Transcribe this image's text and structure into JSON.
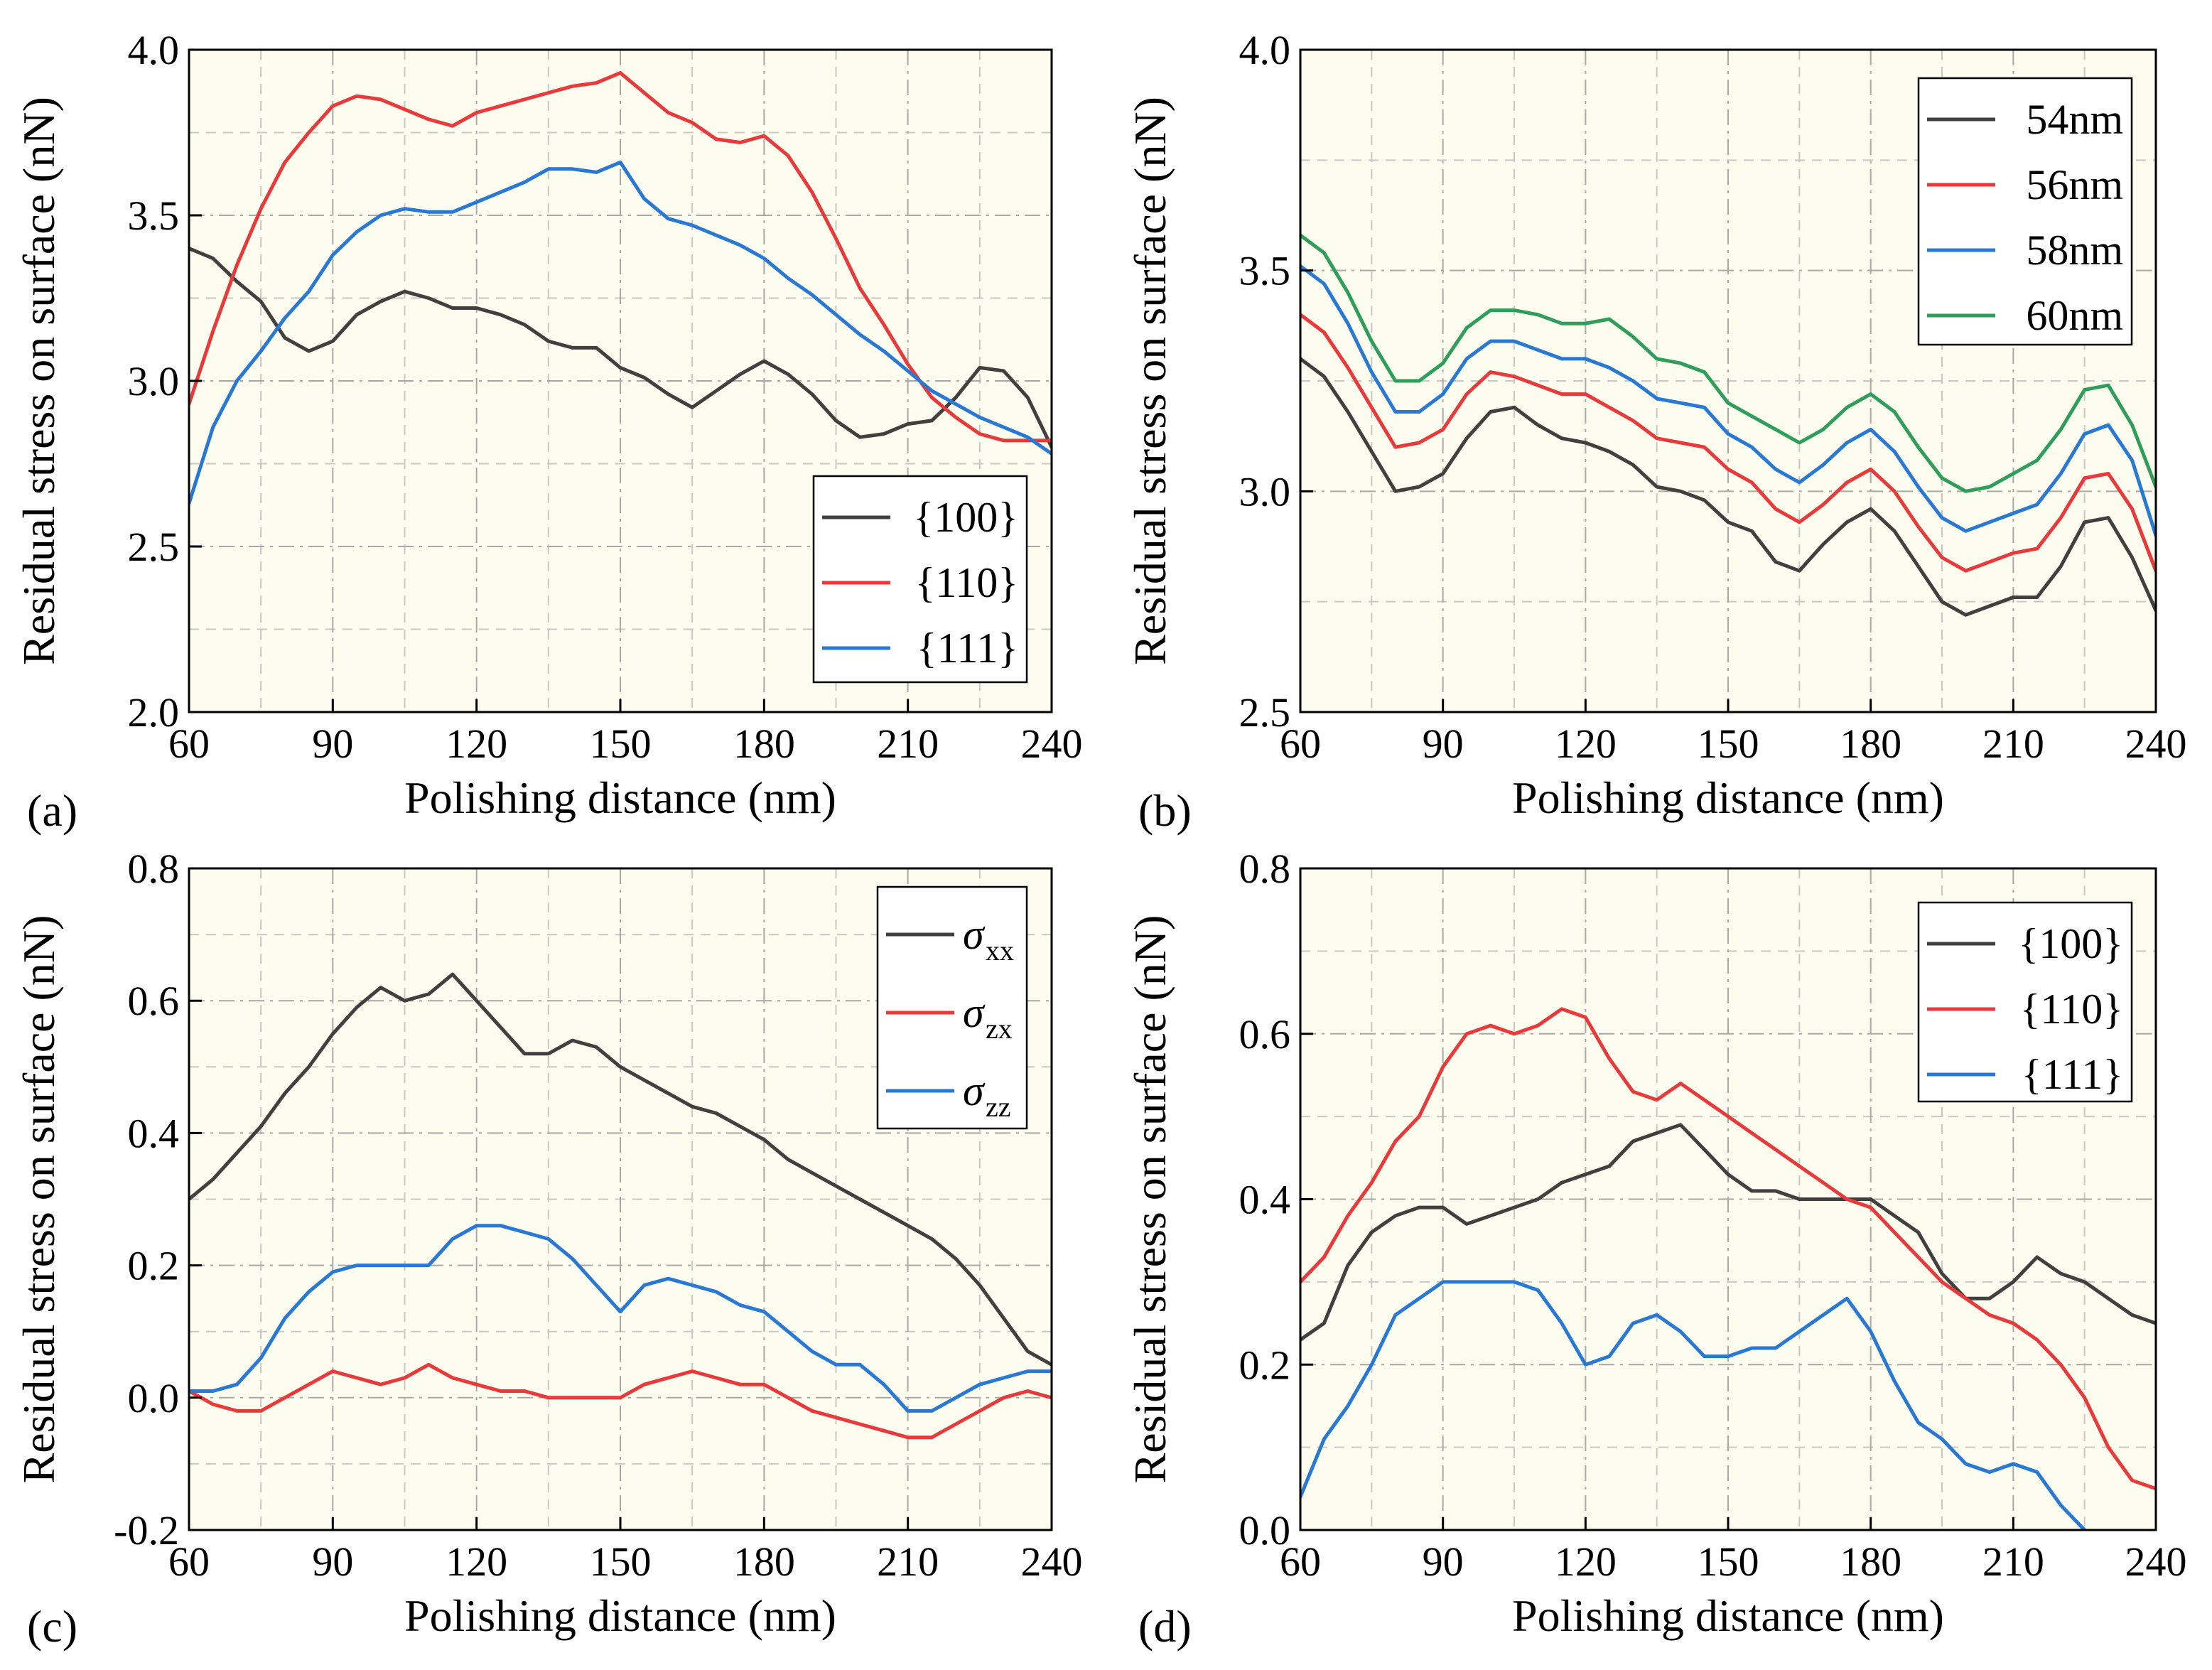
{
  "chart_data": [
    {
      "type": "line",
      "panel_label": "(a)",
      "xlabel": "Polishing distance (nm)",
      "ylabel": "Residual stress on surface (nN)",
      "xlim": [
        60,
        240
      ],
      "ylim": [
        2.0,
        4.0
      ],
      "xticks": [
        60,
        90,
        120,
        150,
        180,
        210,
        240
      ],
      "xtick_labels": [
        "60",
        "90",
        "120",
        "150",
        "180",
        "210",
        "240"
      ],
      "yticks": [
        2.0,
        2.5,
        3.0,
        3.5,
        4.0
      ],
      "ytick_labels": [
        "2.0",
        "2.5",
        "3.0",
        "3.5",
        "4.0"
      ],
      "grid": true,
      "legend_position": "bottom-right",
      "x": [
        60,
        65,
        70,
        75,
        80,
        85,
        90,
        95,
        100,
        105,
        110,
        115,
        120,
        125,
        130,
        135,
        140,
        145,
        150,
        155,
        160,
        165,
        170,
        175,
        180,
        185,
        190,
        195,
        200,
        205,
        210,
        215,
        220,
        225,
        230,
        235,
        240
      ],
      "series": [
        {
          "name": "{100}",
          "label_main": "{100}",
          "label_sub": "",
          "color": "#404040",
          "values": [
            3.4,
            3.37,
            3.3,
            3.24,
            3.13,
            3.09,
            3.12,
            3.2,
            3.24,
            3.27,
            3.25,
            3.22,
            3.22,
            3.2,
            3.17,
            3.12,
            3.1,
            3.1,
            3.04,
            3.01,
            2.96,
            2.92,
            2.97,
            3.02,
            3.06,
            3.02,
            2.96,
            2.88,
            2.83,
            2.84,
            2.87,
            2.88,
            2.95,
            3.04,
            3.03,
            2.95,
            2.8
          ]
        },
        {
          "name": "{110}",
          "label_main": "{110}",
          "label_sub": "",
          "color": "#e8393b",
          "values": [
            2.93,
            3.15,
            3.35,
            3.52,
            3.66,
            3.75,
            3.83,
            3.86,
            3.85,
            3.82,
            3.79,
            3.77,
            3.81,
            3.83,
            3.85,
            3.87,
            3.89,
            3.9,
            3.93,
            3.87,
            3.81,
            3.78,
            3.73,
            3.72,
            3.74,
            3.68,
            3.57,
            3.43,
            3.28,
            3.17,
            3.05,
            2.95,
            2.89,
            2.84,
            2.82,
            2.82,
            2.82
          ]
        },
        {
          "name": "{111}",
          "label_main": "{111}",
          "label_sub": "",
          "color": "#2878d4",
          "values": [
            2.63,
            2.86,
            3.0,
            3.09,
            3.19,
            3.27,
            3.38,
            3.45,
            3.5,
            3.52,
            3.51,
            3.51,
            3.54,
            3.57,
            3.6,
            3.64,
            3.64,
            3.63,
            3.66,
            3.55,
            3.49,
            3.47,
            3.44,
            3.41,
            3.37,
            3.31,
            3.26,
            3.2,
            3.14,
            3.09,
            3.03,
            2.97,
            2.93,
            2.89,
            2.86,
            2.83,
            2.78
          ]
        }
      ]
    },
    {
      "type": "line",
      "panel_label": "(b)",
      "xlabel": "Polishing distance (nm)",
      "ylabel": "Residual stress on surface (nN)",
      "xlim": [
        60,
        240
      ],
      "ylim": [
        2.5,
        4.0
      ],
      "xticks": [
        60,
        90,
        120,
        150,
        180,
        210,
        240
      ],
      "xtick_labels": [
        "60",
        "90",
        "120",
        "150",
        "180",
        "210",
        "240"
      ],
      "yticks": [
        2.5,
        3.0,
        3.5,
        4.0
      ],
      "ytick_labels": [
        "2.5",
        "3.0",
        "3.5",
        "4.0"
      ],
      "grid": true,
      "legend_position": "top-right",
      "x": [
        60,
        65,
        70,
        75,
        80,
        85,
        90,
        95,
        100,
        105,
        110,
        115,
        120,
        125,
        130,
        135,
        140,
        145,
        150,
        155,
        160,
        165,
        170,
        175,
        180,
        185,
        190,
        195,
        200,
        205,
        210,
        215,
        220,
        225,
        230,
        235,
        240
      ],
      "series": [
        {
          "name": "54nm",
          "label_main": "54nm",
          "label_sub": "",
          "color": "#404040",
          "values": [
            3.3,
            3.26,
            3.18,
            3.09,
            3.0,
            3.01,
            3.04,
            3.12,
            3.18,
            3.19,
            3.15,
            3.12,
            3.11,
            3.09,
            3.06,
            3.01,
            3.0,
            2.98,
            2.93,
            2.91,
            2.84,
            2.82,
            2.88,
            2.93,
            2.96,
            2.91,
            2.83,
            2.75,
            2.72,
            2.74,
            2.76,
            2.76,
            2.83,
            2.93,
            2.94,
            2.85,
            2.73
          ]
        },
        {
          "name": "56nm",
          "label_main": "56nm",
          "label_sub": "",
          "color": "#e8393b",
          "values": [
            3.4,
            3.36,
            3.28,
            3.19,
            3.1,
            3.11,
            3.14,
            3.22,
            3.27,
            3.26,
            3.24,
            3.22,
            3.22,
            3.19,
            3.16,
            3.12,
            3.11,
            3.1,
            3.05,
            3.02,
            2.96,
            2.93,
            2.97,
            3.02,
            3.05,
            3.0,
            2.92,
            2.85,
            2.82,
            2.84,
            2.86,
            2.87,
            2.94,
            3.03,
            3.04,
            2.96,
            2.82
          ]
        },
        {
          "name": "58nm",
          "label_main": "58nm",
          "label_sub": "",
          "color": "#2878d4",
          "values": [
            3.51,
            3.47,
            3.38,
            3.27,
            3.18,
            3.18,
            3.22,
            3.3,
            3.34,
            3.34,
            3.32,
            3.3,
            3.3,
            3.28,
            3.25,
            3.21,
            3.2,
            3.19,
            3.13,
            3.1,
            3.05,
            3.02,
            3.06,
            3.11,
            3.14,
            3.09,
            3.01,
            2.94,
            2.91,
            2.93,
            2.95,
            2.97,
            3.04,
            3.13,
            3.15,
            3.07,
            2.9
          ]
        },
        {
          "name": "60nm",
          "label_main": "60nm",
          "label_sub": "",
          "color": "#2e9e5a",
          "values": [
            3.58,
            3.54,
            3.45,
            3.34,
            3.25,
            3.25,
            3.29,
            3.37,
            3.41,
            3.41,
            3.4,
            3.38,
            3.38,
            3.39,
            3.35,
            3.3,
            3.29,
            3.27,
            3.2,
            3.17,
            3.14,
            3.11,
            3.14,
            3.19,
            3.22,
            3.18,
            3.1,
            3.03,
            3.0,
            3.01,
            3.04,
            3.07,
            3.14,
            3.23,
            3.24,
            3.15,
            3.01
          ]
        }
      ]
    },
    {
      "type": "line",
      "panel_label": "(c)",
      "xlabel": "Polishing distance (nm)",
      "ylabel": "Residual stress on surface (nN)",
      "xlim": [
        60,
        240
      ],
      "ylim": [
        -0.2,
        0.8
      ],
      "xticks": [
        60,
        90,
        120,
        150,
        180,
        210,
        240
      ],
      "xtick_labels": [
        "60",
        "90",
        "120",
        "150",
        "180",
        "210",
        "240"
      ],
      "yticks": [
        -0.2,
        0.0,
        0.2,
        0.4,
        0.6,
        0.8
      ],
      "ytick_labels": [
        "-0.2",
        "0.0",
        "0.2",
        "0.4",
        "0.6",
        "0.8"
      ],
      "grid": true,
      "legend_position": "top-right",
      "x": [
        60,
        65,
        70,
        75,
        80,
        85,
        90,
        95,
        100,
        105,
        110,
        115,
        120,
        125,
        130,
        135,
        140,
        145,
        150,
        155,
        160,
        165,
        170,
        175,
        180,
        185,
        190,
        195,
        200,
        205,
        210,
        215,
        220,
        225,
        230,
        235,
        240
      ],
      "series": [
        {
          "name": "σxx",
          "label_main": "σ",
          "label_sub": "xx",
          "color": "#404040",
          "values": [
            0.3,
            0.33,
            0.37,
            0.41,
            0.46,
            0.5,
            0.55,
            0.59,
            0.62,
            0.6,
            0.61,
            0.64,
            0.6,
            0.56,
            0.52,
            0.52,
            0.54,
            0.53,
            0.5,
            0.48,
            0.46,
            0.44,
            0.43,
            0.41,
            0.39,
            0.36,
            0.34,
            0.32,
            0.3,
            0.28,
            0.26,
            0.24,
            0.21,
            0.17,
            0.12,
            0.07,
            0.05
          ]
        },
        {
          "name": "σzx",
          "label_main": "σ",
          "label_sub": "zx",
          "color": "#e8393b",
          "values": [
            0.01,
            -0.01,
            -0.02,
            -0.02,
            0.0,
            0.02,
            0.04,
            0.03,
            0.02,
            0.03,
            0.05,
            0.03,
            0.02,
            0.01,
            0.01,
            0.0,
            0.0,
            0.0,
            0.0,
            0.02,
            0.03,
            0.04,
            0.03,
            0.02,
            0.02,
            0.0,
            -0.02,
            -0.03,
            -0.04,
            -0.05,
            -0.06,
            -0.06,
            -0.04,
            -0.02,
            0.0,
            0.01,
            0.0
          ]
        },
        {
          "name": "σzz",
          "label_main": "σ",
          "label_sub": "zz",
          "color": "#2878d4",
          "values": [
            0.01,
            0.01,
            0.02,
            0.06,
            0.12,
            0.16,
            0.19,
            0.2,
            0.2,
            0.2,
            0.2,
            0.24,
            0.26,
            0.26,
            0.25,
            0.24,
            0.21,
            0.17,
            0.13,
            0.17,
            0.18,
            0.17,
            0.16,
            0.14,
            0.13,
            0.1,
            0.07,
            0.05,
            0.05,
            0.02,
            -0.02,
            -0.02,
            0.0,
            0.02,
            0.03,
            0.04,
            0.04
          ]
        }
      ]
    },
    {
      "type": "line",
      "panel_label": "(d)",
      "xlabel": "Polishing distance (nm)",
      "ylabel": "Residual stress on surface (nN)",
      "xlim": [
        60,
        240
      ],
      "ylim": [
        0.0,
        0.8
      ],
      "xticks": [
        60,
        90,
        120,
        150,
        180,
        210,
        240
      ],
      "xtick_labels": [
        "60",
        "90",
        "120",
        "150",
        "180",
        "210",
        "240"
      ],
      "yticks": [
        0.0,
        0.2,
        0.4,
        0.6,
        0.8
      ],
      "ytick_labels": [
        "0.0",
        "0.2",
        "0.4",
        "0.6",
        "0.8"
      ],
      "grid": true,
      "legend_position": "top-right",
      "x": [
        60,
        65,
        70,
        75,
        80,
        85,
        90,
        95,
        100,
        105,
        110,
        115,
        120,
        125,
        130,
        135,
        140,
        145,
        150,
        155,
        160,
        165,
        170,
        175,
        180,
        185,
        190,
        195,
        200,
        205,
        210,
        215,
        220,
        225,
        230,
        235,
        240
      ],
      "series": [
        {
          "name": "{100}",
          "label_main": "{100}",
          "label_sub": "",
          "color": "#404040",
          "values": [
            0.23,
            0.25,
            0.32,
            0.36,
            0.38,
            0.39,
            0.39,
            0.37,
            0.38,
            0.39,
            0.4,
            0.42,
            0.43,
            0.44,
            0.47,
            0.48,
            0.49,
            0.46,
            0.43,
            0.41,
            0.41,
            0.4,
            0.4,
            0.4,
            0.4,
            0.38,
            0.36,
            0.31,
            0.28,
            0.28,
            0.3,
            0.33,
            0.31,
            0.3,
            0.28,
            0.26,
            0.25
          ]
        },
        {
          "name": "{110}",
          "label_main": "{110}",
          "label_sub": "",
          "color": "#e8393b",
          "values": [
            0.3,
            0.33,
            0.38,
            0.42,
            0.47,
            0.5,
            0.56,
            0.6,
            0.61,
            0.6,
            0.61,
            0.63,
            0.62,
            0.57,
            0.53,
            0.52,
            0.54,
            0.52,
            0.5,
            0.48,
            0.46,
            0.44,
            0.42,
            0.4,
            0.39,
            0.36,
            0.33,
            0.3,
            0.28,
            0.26,
            0.25,
            0.23,
            0.2,
            0.16,
            0.1,
            0.06,
            0.05
          ]
        },
        {
          "name": "{111}",
          "label_main": "{111}",
          "label_sub": "",
          "color": "#2878d4",
          "values": [
            0.04,
            0.11,
            0.15,
            0.2,
            0.26,
            0.28,
            0.3,
            0.3,
            0.3,
            0.3,
            0.29,
            0.25,
            0.2,
            0.21,
            0.25,
            0.26,
            0.24,
            0.21,
            0.21,
            0.22,
            0.22,
            0.24,
            0.26,
            0.28,
            0.24,
            0.18,
            0.13,
            0.11,
            0.08,
            0.07,
            0.08,
            0.07,
            0.03,
            0.0,
            null,
            null,
            null
          ]
        }
      ]
    }
  ]
}
